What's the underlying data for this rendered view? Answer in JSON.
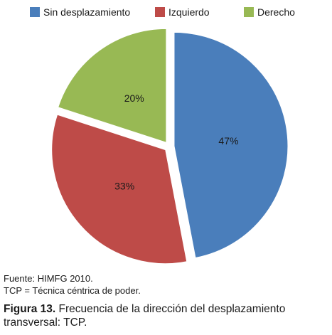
{
  "chart_data": {
    "type": "pie",
    "categories": [
      "Sin desplazamiento",
      "Izquierdo",
      "Derecho"
    ],
    "values": [
      47,
      33,
      20
    ],
    "data_labels": [
      "47%",
      "33%",
      "20%"
    ],
    "colors": [
      "#4a7ebb",
      "#be4b48",
      "#98b954"
    ],
    "legend_position": "top",
    "exploded": true
  },
  "notes": {
    "source": "Fuente: HIMFG 2010.",
    "abbreviation": "TCP = Técnica céntrica de poder."
  },
  "caption": {
    "label": "Figura 13.",
    "text": " Frecuencia de la dirección del desplazamiento transversal: TCP."
  }
}
